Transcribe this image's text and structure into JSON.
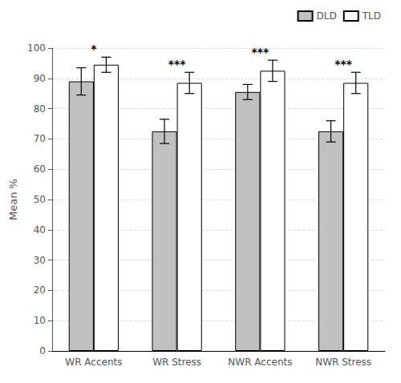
{
  "chart_data": {
    "type": "bar",
    "ylabel": "Mean %",
    "categories": [
      "WR Accents",
      "WR Stress",
      "NWR Accents",
      "NWR Stress"
    ],
    "series": [
      {
        "name": "DLD",
        "color": "#c0c0c0",
        "values": [
          89.0,
          72.5,
          85.5,
          72.5
        ],
        "errors": [
          4.5,
          4.0,
          2.5,
          3.5
        ]
      },
      {
        "name": "TLD",
        "color": "#ffffff",
        "values": [
          94.5,
          88.5,
          92.5,
          88.5
        ],
        "errors": [
          2.5,
          3.5,
          3.5,
          3.5
        ]
      }
    ],
    "annotations": [
      "*",
      "***",
      "***",
      "***"
    ],
    "ylim": [
      0,
      100
    ],
    "yticks": [
      0,
      10,
      20,
      30,
      40,
      50,
      60,
      70,
      80,
      90,
      100
    ],
    "grid": true,
    "legend": "upper right"
  }
}
